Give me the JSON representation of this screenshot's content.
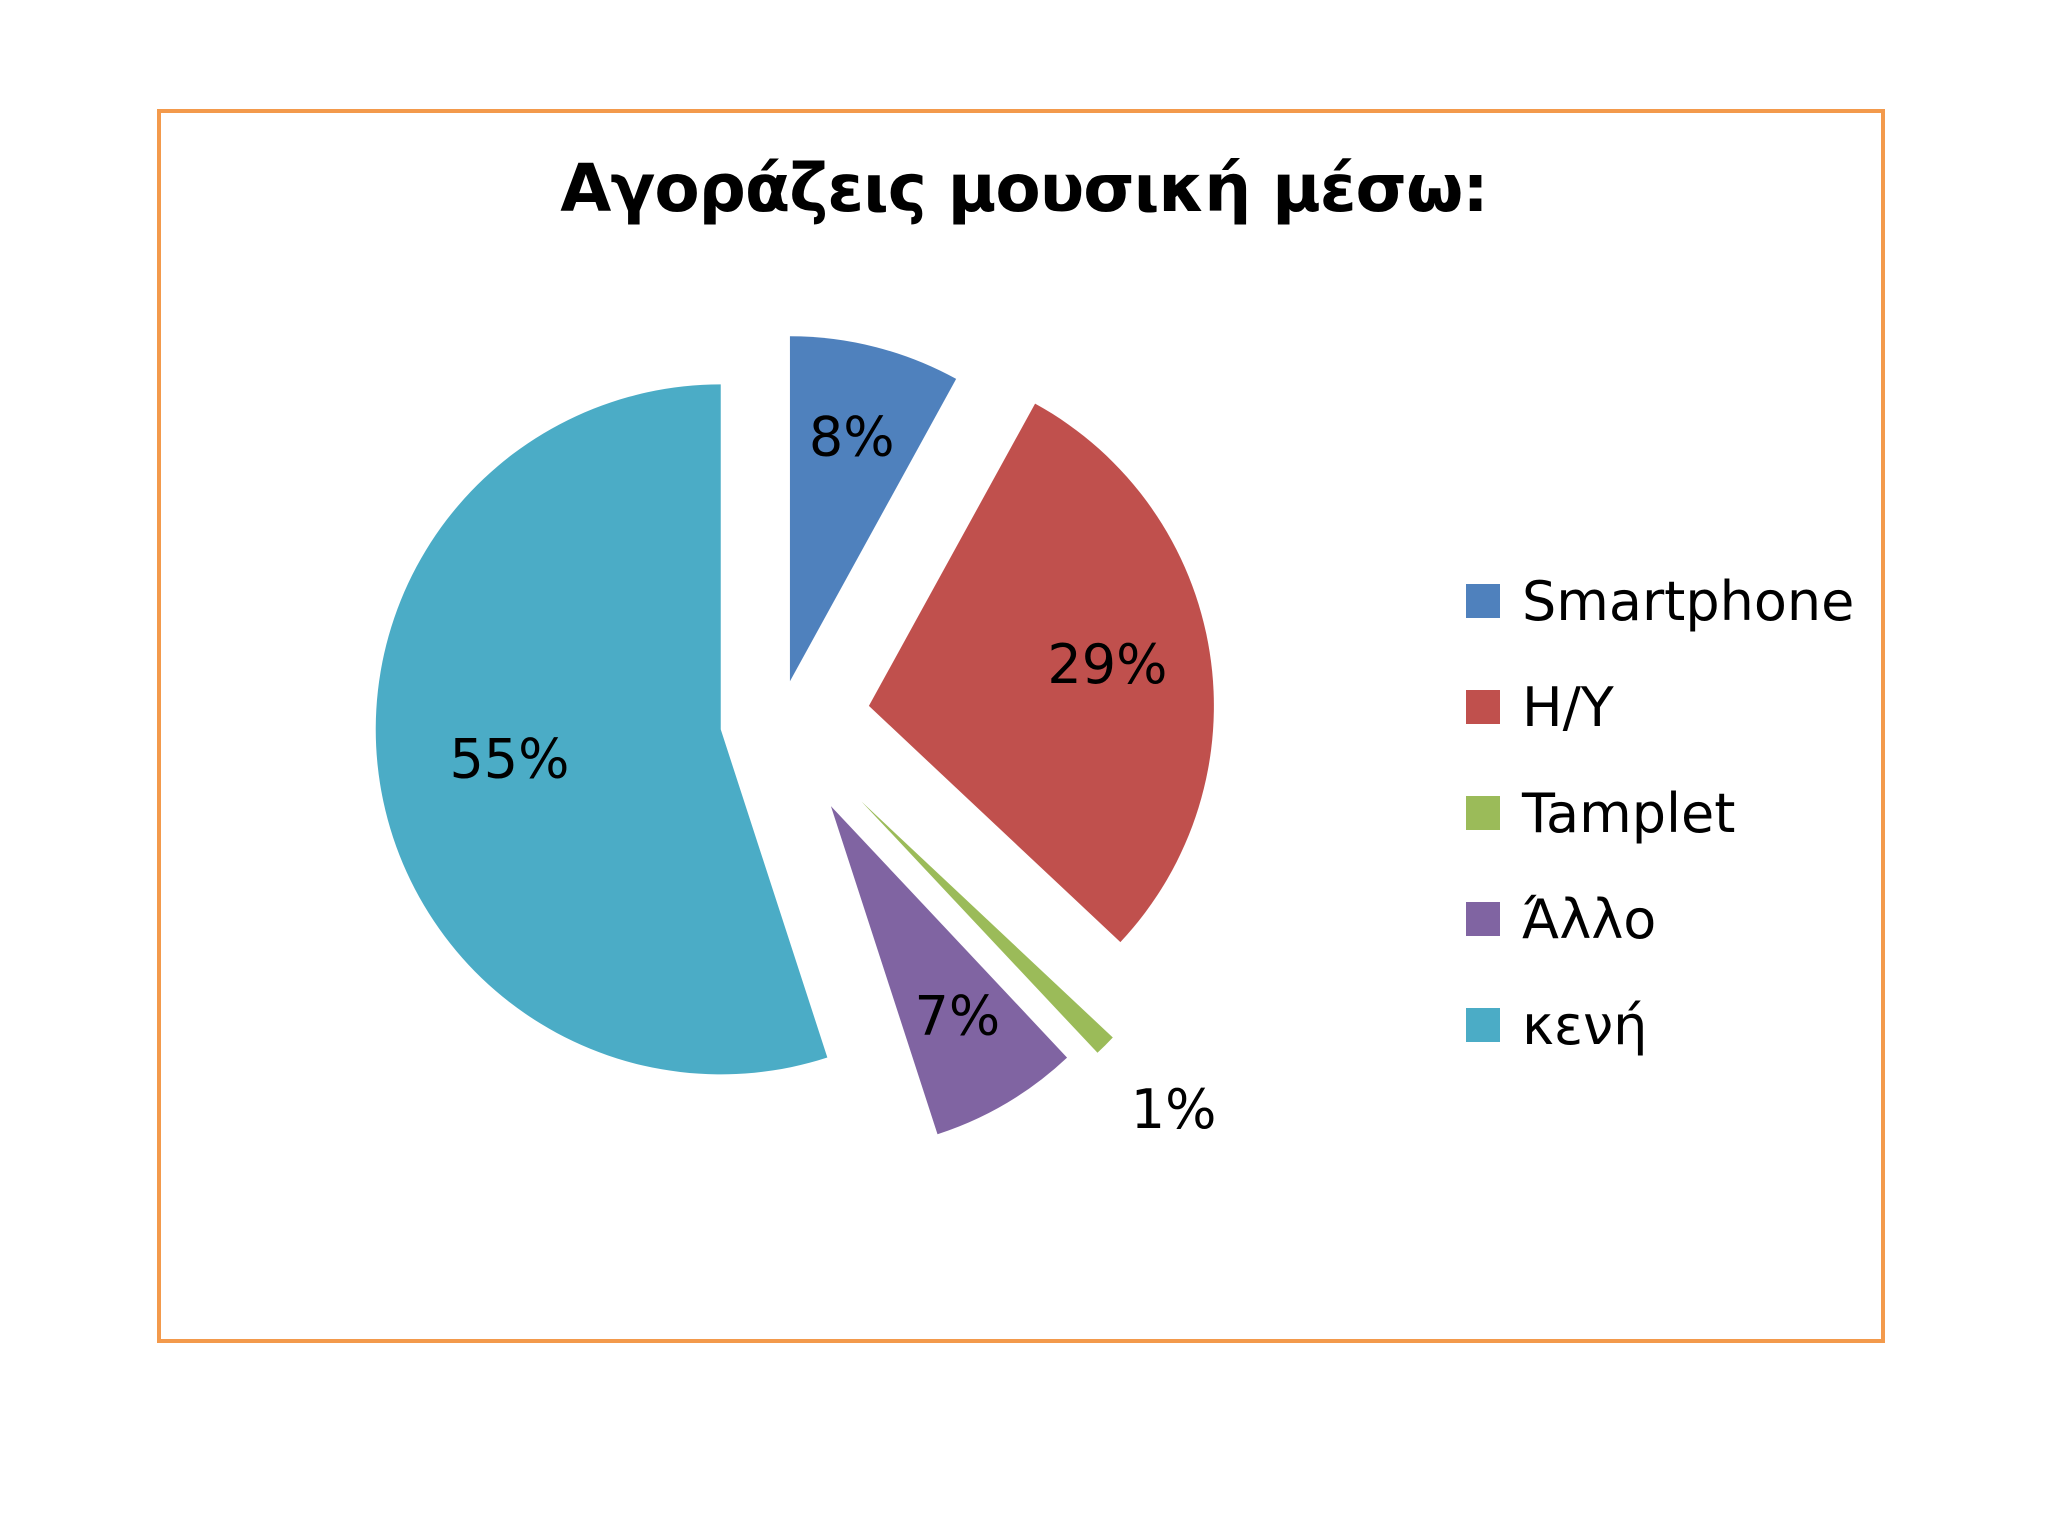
{
  "chart_data": {
    "type": "pie",
    "title": "Αγοράζεις μουσική μέσω:",
    "categories": [
      "Smartphone",
      "H/Y",
      "Tamplet",
      "Άλλο",
      "κενή"
    ],
    "values": [
      8,
      29,
      1,
      7,
      55
    ],
    "labels": [
      "8%",
      "29%",
      "1%",
      "7%",
      "55%"
    ],
    "colors": [
      "#4f81bd",
      "#c0504d",
      "#9bbb59",
      "#8064a2",
      "#4bacc6"
    ],
    "exploded": true,
    "legend_position": "right"
  }
}
